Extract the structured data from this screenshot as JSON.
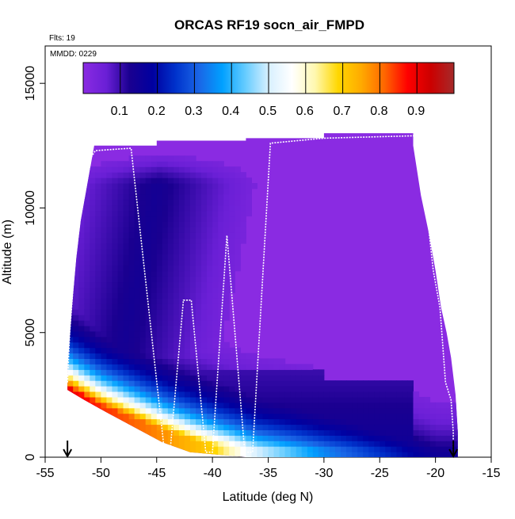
{
  "chart_data": {
    "type": "heatmap",
    "title": "ORCAS RF19 socn_air_FMPD",
    "annotations": {
      "flights": "Flts: 19",
      "date": "MMDD: 0229"
    },
    "xlabel": "Latitude (deg N)",
    "ylabel": "Altitude (m)",
    "xlim": [
      -55,
      -15
    ],
    "ylim": [
      0,
      16500
    ],
    "xticks": [
      -55,
      -50,
      -45,
      -40,
      -35,
      -30,
      -25,
      -20,
      -15
    ],
    "yticks": [
      0,
      5000,
      10000,
      15000
    ],
    "xtick_labels": [
      "-55",
      "-50",
      "-45",
      "-40",
      "-35",
      "-30",
      "-25",
      "-20",
      "-15"
    ],
    "ytick_labels": [
      "0",
      "5000",
      "10000",
      "15000"
    ],
    "colorbar": {
      "range": [
        0,
        1
      ],
      "ticks": [
        0.1,
        0.2,
        0.3,
        0.4,
        0.5,
        0.6,
        0.7,
        0.8,
        0.9
      ],
      "tick_labels": [
        "0.1",
        "0.2",
        "0.3",
        "0.4",
        "0.5",
        "0.6",
        "0.7",
        "0.8",
        "0.9"
      ],
      "colors": [
        "#8a2be2",
        "#6a1fd6",
        "#1a0090",
        "#0000a0",
        "#0033cc",
        "#1a66e6",
        "#00a0ff",
        "#66ccff",
        "#d8f0ff",
        "#ffffff",
        "#fff8b0",
        "#ffd700",
        "#ffaa00",
        "#ff6600",
        "#ff0000",
        "#cc0000",
        "#a52a2a"
      ],
      "divider_values": [
        0.1,
        0.2,
        0.3,
        0.4,
        0.5,
        0.6,
        0.7,
        0.8,
        0.9
      ]
    },
    "markers": [
      {
        "name": "start-arrow",
        "latitude": -53
      },
      {
        "name": "end-arrow",
        "latitude": -18.4
      }
    ],
    "domain_outline": [
      [
        -53,
        2700
      ],
      [
        -53,
        3500
      ],
      [
        -52.6,
        6000
      ],
      [
        -52.2,
        8000
      ],
      [
        -51.8,
        9500
      ],
      [
        -51.4,
        10500
      ],
      [
        -51,
        11500
      ],
      [
        -50.6,
        12500
      ],
      [
        -45,
        12500
      ],
      [
        -45,
        12700
      ],
      [
        -37,
        12700
      ],
      [
        -37,
        12800
      ],
      [
        -30,
        12800
      ],
      [
        -30,
        13000
      ],
      [
        -22,
        13000
      ],
      [
        -22,
        12500
      ],
      [
        -21.3,
        10500
      ],
      [
        -20.6,
        9000
      ],
      [
        -20,
        7500
      ],
      [
        -19.5,
        6000
      ],
      [
        -19,
        5000
      ],
      [
        -18.6,
        4000
      ],
      [
        -18.2,
        2500
      ],
      [
        -18,
        1000
      ],
      [
        -18,
        0
      ],
      [
        -37,
        0
      ],
      [
        -42,
        200
      ],
      [
        -44.5,
        600
      ],
      [
        -47,
        1200
      ],
      [
        -49.5,
        1800
      ],
      [
        -51.5,
        2300
      ]
    ],
    "flight_track": [
      [
        -53,
        3000
      ],
      [
        -52.8,
        5000
      ],
      [
        -52.3,
        8000
      ],
      [
        -51.8,
        10000
      ],
      [
        -51.2,
        11800
      ],
      [
        -50.5,
        12300
      ],
      [
        -47.3,
        12400
      ],
      [
        -44.3,
        200
      ],
      [
        -43.8,
        200
      ],
      [
        -42.6,
        6300
      ],
      [
        -41.9,
        6300
      ],
      [
        -40.6,
        200
      ],
      [
        -40.0,
        200
      ],
      [
        -38.7,
        8900
      ],
      [
        -37.1,
        200
      ],
      [
        -36.4,
        200
      ],
      [
        -34.8,
        12600
      ],
      [
        -30,
        12800
      ],
      [
        -21.5,
        12900
      ],
      [
        -20.2,
        7500
      ],
      [
        -19.6,
        6000
      ],
      [
        -19.1,
        3000
      ],
      [
        -18.6,
        2300
      ],
      [
        -18.4,
        1000
      ],
      [
        -18.4,
        0
      ]
    ],
    "field_description": {
      "background_value": 0.02,
      "low_band": [
        [
          -53,
          2800,
          0.9
        ],
        [
          -50,
          2100,
          0.85
        ],
        [
          -46,
          1400,
          0.8
        ],
        [
          -43,
          900,
          0.75
        ],
        [
          -40,
          500,
          0.7
        ],
        [
          -36,
          350,
          0.5
        ],
        [
          -30,
          300,
          0.35
        ],
        [
          -25,
          250,
          0.25
        ],
        [
          -20,
          200,
          0.15
        ]
      ]
    }
  }
}
